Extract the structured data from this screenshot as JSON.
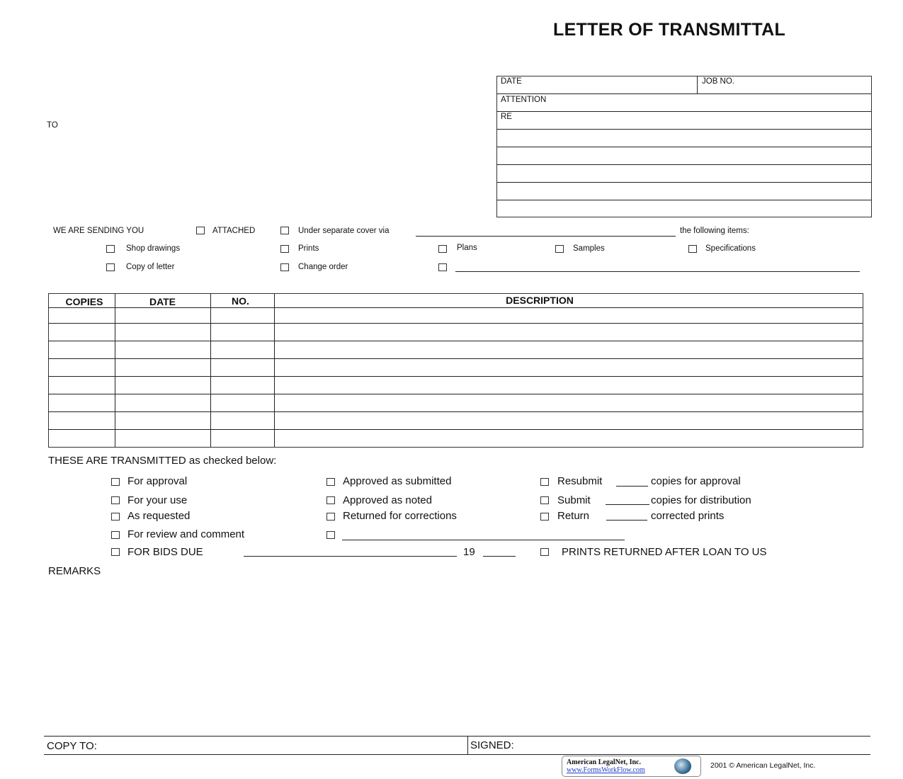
{
  "title": "LETTER OF TRANSMITTAL",
  "to_label": "TO",
  "header_box": {
    "date": "DATE",
    "job_no": "JOB NO.",
    "attention": "ATTENTION",
    "re": "RE"
  },
  "sending": {
    "label": "WE ARE SENDING YOU",
    "attached": "ATTACHED",
    "separate": "Under separate cover via",
    "following": "the following items:",
    "items": [
      "Shop drawings",
      "Prints",
      "Plans",
      "Samples",
      "Specifications",
      "Copy of letter",
      "Change order"
    ]
  },
  "table": {
    "headers": [
      "COPIES",
      "DATE",
      "NO.",
      "DESCRIPTION"
    ]
  },
  "transmitted": {
    "label": "THESE ARE TRANSMITTED as checked below:",
    "col1": [
      "For approval",
      "For your use",
      "As requested",
      "For review and comment",
      "FOR BIDS DUE"
    ],
    "col2": [
      "Approved as submitted",
      "Approved as noted",
      "Returned for corrections"
    ],
    "col3": [
      {
        "pre": "Resubmit",
        "post": "copies for approval"
      },
      {
        "pre": "Submit",
        "post": "copies for distribution"
      },
      {
        "pre": "Return",
        "post": "corrected prints"
      }
    ],
    "year_prefix": "19",
    "prints_returned": "PRINTS RETURNED AFTER LOAN TO US"
  },
  "remarks_label": "REMARKS",
  "copy_to": "COPY TO:",
  "signed": "SIGNED:",
  "footer": {
    "logo_name": "American LegalNet, Inc.",
    "logo_url": "www.FormsWorkFlow.com",
    "copyright": "2001 © American LegalNet, Inc."
  }
}
